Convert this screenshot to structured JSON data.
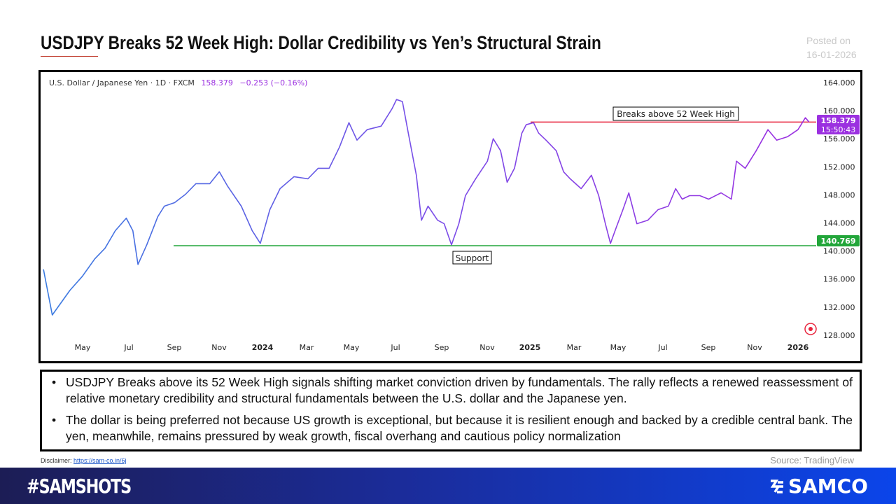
{
  "header": {
    "title": "USDJPY Breaks 52 Week High: Dollar Credibility vs Yen’s Structural Strain",
    "posted_label": "Posted on",
    "posted_date": "16-01-2026"
  },
  "chart_data": {
    "type": "line",
    "legend": {
      "symbol": "U.S. Dollar / Japanese Yen · 1D · FXCM",
      "price": "158.379",
      "change": "−0.253 (−0.16%)"
    },
    "series_color": "#9b30e0",
    "y_axis": {
      "ticks": [
        "164.000",
        "160.000",
        "156.000",
        "152.000",
        "148.000",
        "144.000",
        "140.000",
        "136.000",
        "132.000",
        "128.000"
      ],
      "ylim": [
        128,
        164
      ],
      "position": "right"
    },
    "x_axis": {
      "ticks": [
        "May",
        "Jul",
        "Sep",
        "Nov",
        "2024",
        "Mar",
        "May",
        "Jul",
        "Sep",
        "Nov",
        "2025",
        "Mar",
        "May",
        "Jul",
        "Sep",
        "Nov",
        "2026"
      ]
    },
    "price_label": {
      "value": "158.379",
      "countdown": "15:50:43",
      "color": "#9b30e0"
    },
    "support_label": {
      "value": "140.769",
      "color": "#22a63a"
    },
    "annotations": {
      "resistance": {
        "text": "Breaks above 52 Week High",
        "value": 158.379,
        "color": "#e8233c"
      },
      "support": {
        "text": "Support",
        "value": 140.769,
        "color": "#22a63a"
      }
    },
    "points": [
      [
        "2023-03-08",
        137.4
      ],
      [
        "2023-03-20",
        130.9
      ],
      [
        "2023-04-13",
        134.4
      ],
      [
        "2023-04-30",
        136.4
      ],
      [
        "2023-05-17",
        138.9
      ],
      [
        "2023-05-31",
        140.4
      ],
      [
        "2023-06-14",
        142.9
      ],
      [
        "2023-06-29",
        144.7
      ],
      [
        "2023-07-08",
        142.9
      ],
      [
        "2023-07-15",
        138.1
      ],
      [
        "2023-07-27",
        140.9
      ],
      [
        "2023-08-11",
        144.9
      ],
      [
        "2023-08-20",
        146.4
      ],
      [
        "2023-09-03",
        146.9
      ],
      [
        "2023-09-18",
        148.1
      ],
      [
        "2023-10-02",
        149.6
      ],
      [
        "2023-10-21",
        149.6
      ],
      [
        "2023-11-03",
        151.3
      ],
      [
        "2023-11-14",
        149.3
      ],
      [
        "2023-12-03",
        146.4
      ],
      [
        "2023-12-18",
        142.9
      ],
      [
        "2023-12-29",
        141.1
      ],
      [
        "2024-01-11",
        145.9
      ],
      [
        "2024-01-25",
        148.9
      ],
      [
        "2024-02-13",
        150.6
      ],
      [
        "2024-03-03",
        150.3
      ],
      [
        "2024-03-17",
        151.8
      ],
      [
        "2024-04-01",
        151.8
      ],
      [
        "2024-04-15",
        154.8
      ],
      [
        "2024-04-28",
        158.3
      ],
      [
        "2024-05-09",
        155.8
      ],
      [
        "2024-05-23",
        157.3
      ],
      [
        "2024-06-11",
        157.8
      ],
      [
        "2024-06-26",
        160.3
      ],
      [
        "2024-07-02",
        161.6
      ],
      [
        "2024-07-10",
        161.3
      ],
      [
        "2024-07-18",
        156.8
      ],
      [
        "2024-07-29",
        150.8
      ],
      [
        "2024-08-05",
        144.4
      ],
      [
        "2024-08-14",
        146.4
      ],
      [
        "2024-08-27",
        144.4
      ],
      [
        "2024-09-05",
        143.9
      ],
      [
        "2024-09-15",
        140.9
      ],
      [
        "2024-09-25",
        143.9
      ],
      [
        "2024-10-04",
        147.9
      ],
      [
        "2024-10-18",
        150.3
      ],
      [
        "2024-11-03",
        152.8
      ],
      [
        "2024-11-11",
        156.0
      ],
      [
        "2024-11-21",
        154.3
      ],
      [
        "2024-11-30",
        149.8
      ],
      [
        "2024-12-10",
        151.8
      ],
      [
        "2024-12-20",
        156.8
      ],
      [
        "2024-12-26",
        158.0
      ],
      [
        "2025-01-05",
        158.3
      ],
      [
        "2025-01-12",
        156.8
      ],
      [
        "2025-01-22",
        155.8
      ],
      [
        "2025-02-05",
        154.3
      ],
      [
        "2025-02-15",
        151.3
      ],
      [
        "2025-02-24",
        150.3
      ],
      [
        "2025-03-11",
        148.9
      ],
      [
        "2025-03-25",
        150.8
      ],
      [
        "2025-04-04",
        147.9
      ],
      [
        "2025-04-13",
        143.9
      ],
      [
        "2025-04-20",
        141.1
      ],
      [
        "2025-04-28",
        143.4
      ],
      [
        "2025-05-07",
        145.9
      ],
      [
        "2025-05-15",
        148.3
      ],
      [
        "2025-05-26",
        143.9
      ],
      [
        "2025-06-10",
        144.4
      ],
      [
        "2025-06-24",
        145.9
      ],
      [
        "2025-07-08",
        146.4
      ],
      [
        "2025-07-18",
        148.9
      ],
      [
        "2025-07-27",
        147.4
      ],
      [
        "2025-08-06",
        147.9
      ],
      [
        "2025-08-20",
        147.9
      ],
      [
        "2025-09-01",
        147.4
      ],
      [
        "2025-09-18",
        148.3
      ],
      [
        "2025-10-02",
        147.4
      ],
      [
        "2025-10-09",
        152.8
      ],
      [
        "2025-10-21",
        151.8
      ],
      [
        "2025-11-05",
        154.3
      ],
      [
        "2025-11-21",
        157.3
      ],
      [
        "2025-12-03",
        155.8
      ],
      [
        "2025-12-18",
        156.3
      ],
      [
        "2026-01-01",
        157.3
      ],
      [
        "2026-01-11",
        159.0
      ],
      [
        "2026-01-16",
        158.4
      ]
    ]
  },
  "commentary": {
    "bullets": [
      "USDJPY Breaks above its 52 Week High signals shifting market conviction driven by fundamentals. The rally reflects a renewed reassessment of relative monetary credibility and structural fundamentals between the U.S. dollar and the Japanese yen.",
      "The dollar is being preferred not because US growth is exceptional, but because it is resilient enough and backed by a credible central bank. The yen, meanwhile, remains pressured by weak growth, fiscal overhang and cautious policy normalization"
    ]
  },
  "footer": {
    "disclaimer_label": "Disclaimer:",
    "disclaimer_link": "https://sam-co.in/6j",
    "source": "Source: TradingView",
    "hashtag": "#SAMSHOTS",
    "brand": "SAMCO"
  }
}
